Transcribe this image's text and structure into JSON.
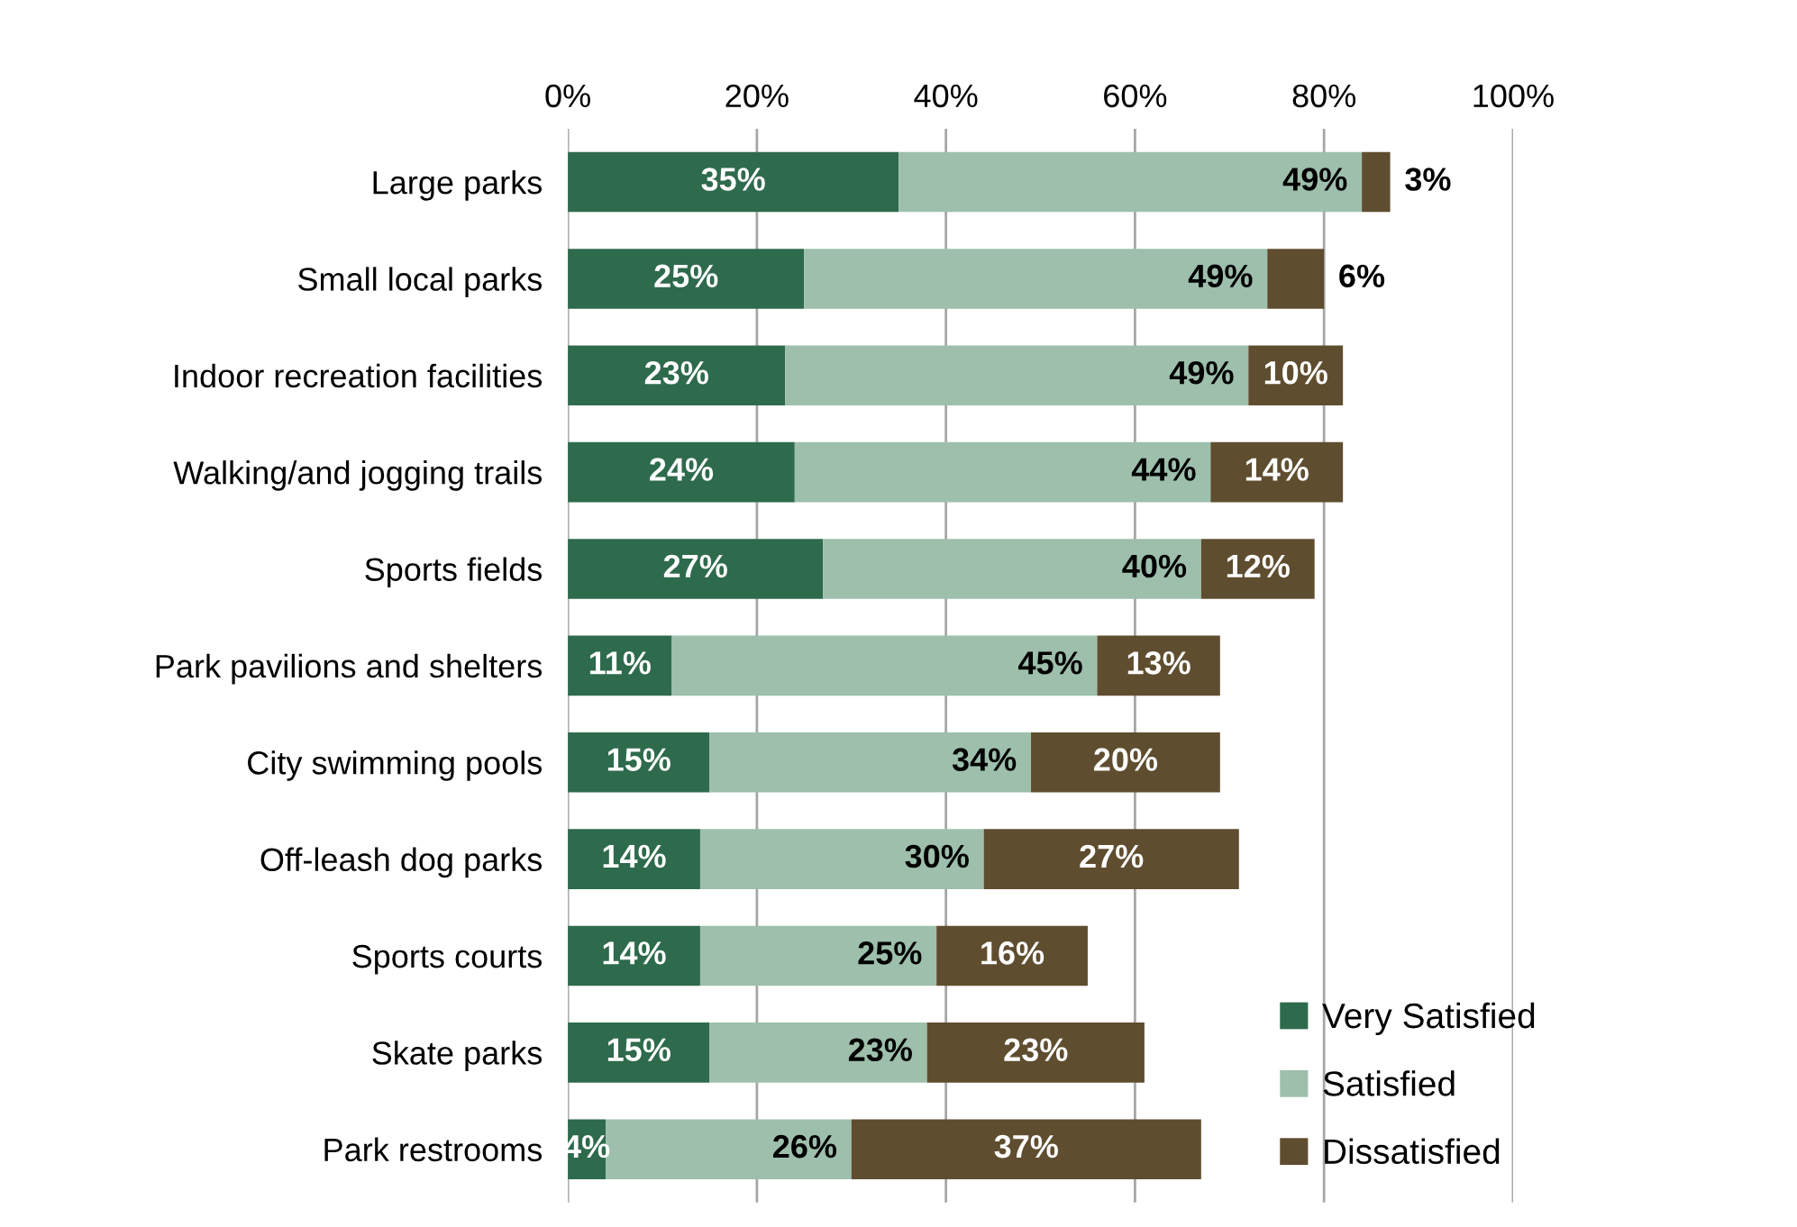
{
  "chart_data": {
    "type": "bar",
    "orientation": "horizontal",
    "stacked": true,
    "categories": [
      "Large parks",
      "Small local parks",
      "Indoor recreation facilities",
      "Walking/and jogging trails",
      "Sports fields",
      "Park pavilions and shelters",
      "City swimming pools",
      "Off-leash dog parks",
      "Sports courts",
      "Skate parks",
      "Park restrooms"
    ],
    "series": [
      {
        "name": "Very Satisfied",
        "color": "#2e6a4c",
        "values": [
          35,
          25,
          23,
          24,
          27,
          11,
          15,
          14,
          14,
          15,
          4
        ],
        "value_labels": [
          "35%",
          "25%",
          "23%",
          "24%",
          "27%",
          "11%",
          "15%",
          "14%",
          "14%",
          "15%",
          "4%"
        ]
      },
      {
        "name": "Satisfied",
        "color": "#9dbfac",
        "values": [
          49,
          49,
          49,
          44,
          40,
          45,
          34,
          30,
          25,
          23,
          26
        ],
        "value_labels": [
          "49%",
          "49%",
          "49%",
          "44%",
          "40%",
          "45%",
          "34%",
          "30%",
          "25%",
          "23%",
          "26%"
        ]
      },
      {
        "name": "Dissatisfied",
        "color": "#5f4d2f",
        "values": [
          3,
          6,
          10,
          14,
          12,
          13,
          20,
          27,
          16,
          23,
          37
        ],
        "value_labels": [
          "3%",
          "6%",
          "10%",
          "14%",
          "12%",
          "13%",
          "20%",
          "27%",
          "16%",
          "23%",
          "37%"
        ]
      }
    ],
    "xlim": [
      0,
      100
    ],
    "xticks": [
      {
        "value": 0,
        "label": "0%"
      },
      {
        "value": 20,
        "label": "20%"
      },
      {
        "value": 40,
        "label": "40%"
      },
      {
        "value": 60,
        "label": "60%"
      },
      {
        "value": 80,
        "label": "80%"
      },
      {
        "value": 100,
        "label": "100%"
      }
    ],
    "grid": "x",
    "legend": "bottom right"
  }
}
